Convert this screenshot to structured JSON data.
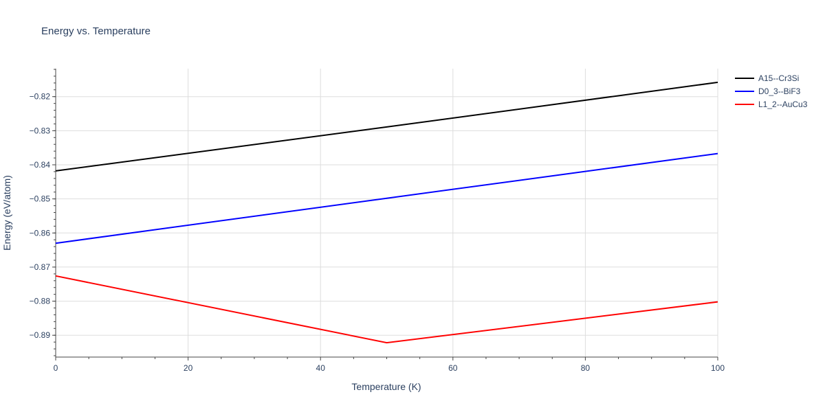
{
  "chart_data": {
    "type": "line",
    "title": "Energy vs. Temperature",
    "xlabel": "Temperature (K)",
    "ylabel": "Energy (eV/atom)",
    "xlim": [
      0,
      100
    ],
    "ylim": [
      -0.8964,
      -0.8118
    ],
    "x_ticks": [
      0,
      20,
      40,
      60,
      80,
      100
    ],
    "x_tick_labels": [
      "0",
      "20",
      "40",
      "60",
      "80",
      "100"
    ],
    "y_ticks": [
      -0.82,
      -0.83,
      -0.84,
      -0.85,
      -0.86,
      -0.87,
      -0.88,
      -0.89
    ],
    "y_tick_labels": [
      "−0.82",
      "−0.83",
      "−0.84",
      "−0.85",
      "−0.86",
      "−0.87",
      "−0.88",
      "−0.89"
    ],
    "grid": true,
    "legend_position": "top-right",
    "series": [
      {
        "name": "A15--Cr3Si",
        "color": "#000000",
        "x": [
          0,
          50,
          100
        ],
        "y": [
          -0.8418,
          -0.8289,
          -0.8158
        ]
      },
      {
        "name": "D0_3--BiF3",
        "color": "#0000ff",
        "x": [
          0,
          50,
          100
        ],
        "y": [
          -0.863,
          -0.8498,
          -0.8367
        ]
      },
      {
        "name": "L1_2--AuCu3",
        "color": "#ff0000",
        "x": [
          0,
          50,
          100
        ],
        "y": [
          -0.8726,
          -0.8922,
          -0.8802
        ]
      }
    ]
  }
}
